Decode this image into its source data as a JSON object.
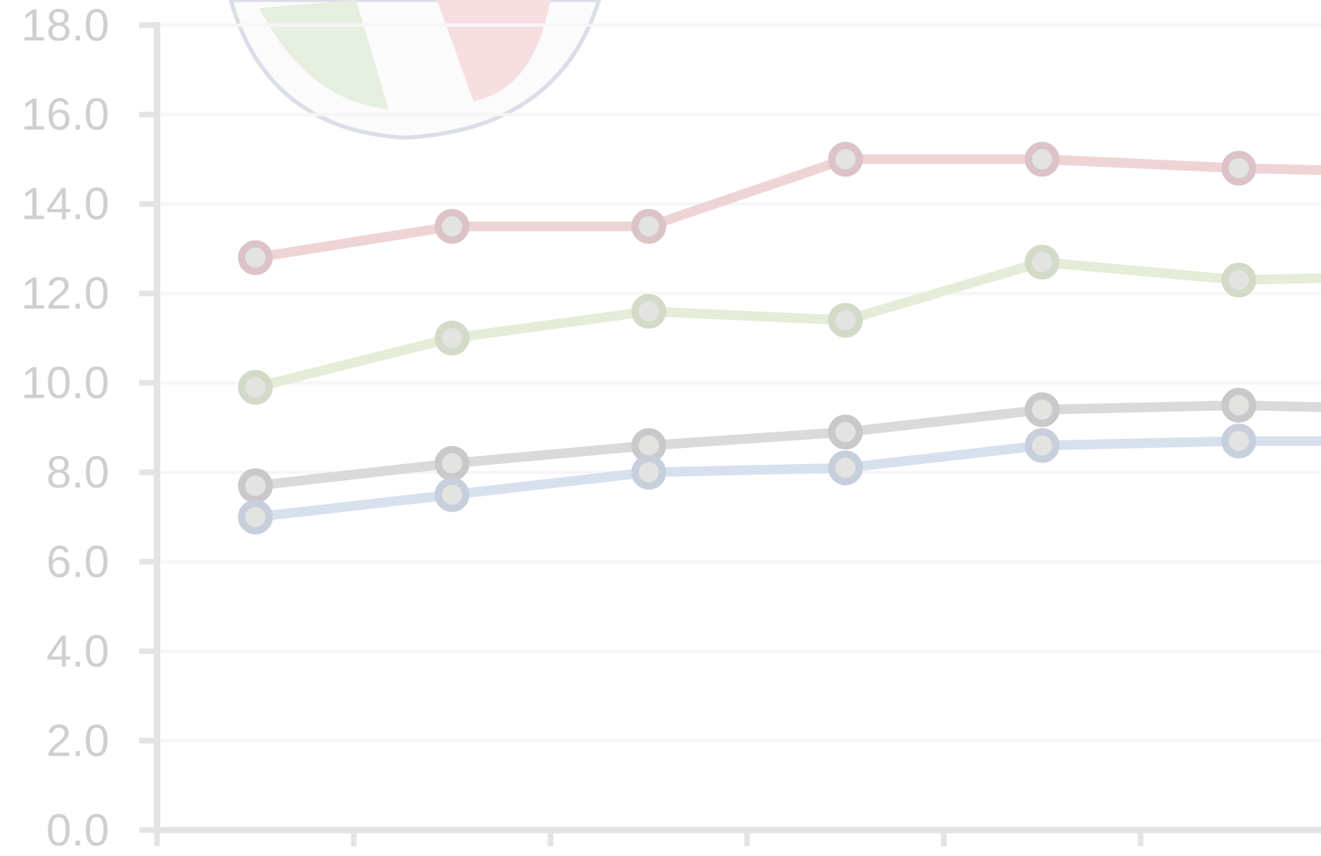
{
  "chart_data": {
    "type": "line",
    "categories": [
      null,
      null,
      null,
      null,
      null,
      null,
      null
    ],
    "series": [
      {
        "color": "#efd4d6",
        "values": [
          12.8,
          13.5,
          13.5,
          15.0,
          15.0,
          14.8,
          14.7
        ]
      },
      {
        "color": "#e5edd9",
        "values": [
          9.9,
          11.0,
          11.6,
          11.4,
          12.7,
          12.3,
          12.4
        ]
      },
      {
        "color": "#dadada",
        "values": [
          7.7,
          8.2,
          8.6,
          8.9,
          9.4,
          9.5,
          9.4
        ]
      },
      {
        "color": "#d7e1ee",
        "values": [
          7.0,
          7.5,
          8.0,
          8.1,
          8.6,
          8.7,
          8.7
        ]
      }
    ],
    "ylim": [
      0,
      18
    ],
    "yticks": [
      {
        "value": 0,
        "label": "0.0"
      },
      {
        "value": 2,
        "label": "2.0"
      },
      {
        "value": 4,
        "label": "4.0"
      },
      {
        "value": 6,
        "label": "6.0"
      },
      {
        "value": 8,
        "label": "8.0"
      },
      {
        "value": 10,
        "label": "10.0"
      },
      {
        "value": 12,
        "label": "12.0"
      },
      {
        "value": 14,
        "label": "14.0"
      },
      {
        "value": 16,
        "label": "16.0"
      },
      {
        "value": 18,
        "label": "18.0"
      }
    ],
    "grid": true
  }
}
